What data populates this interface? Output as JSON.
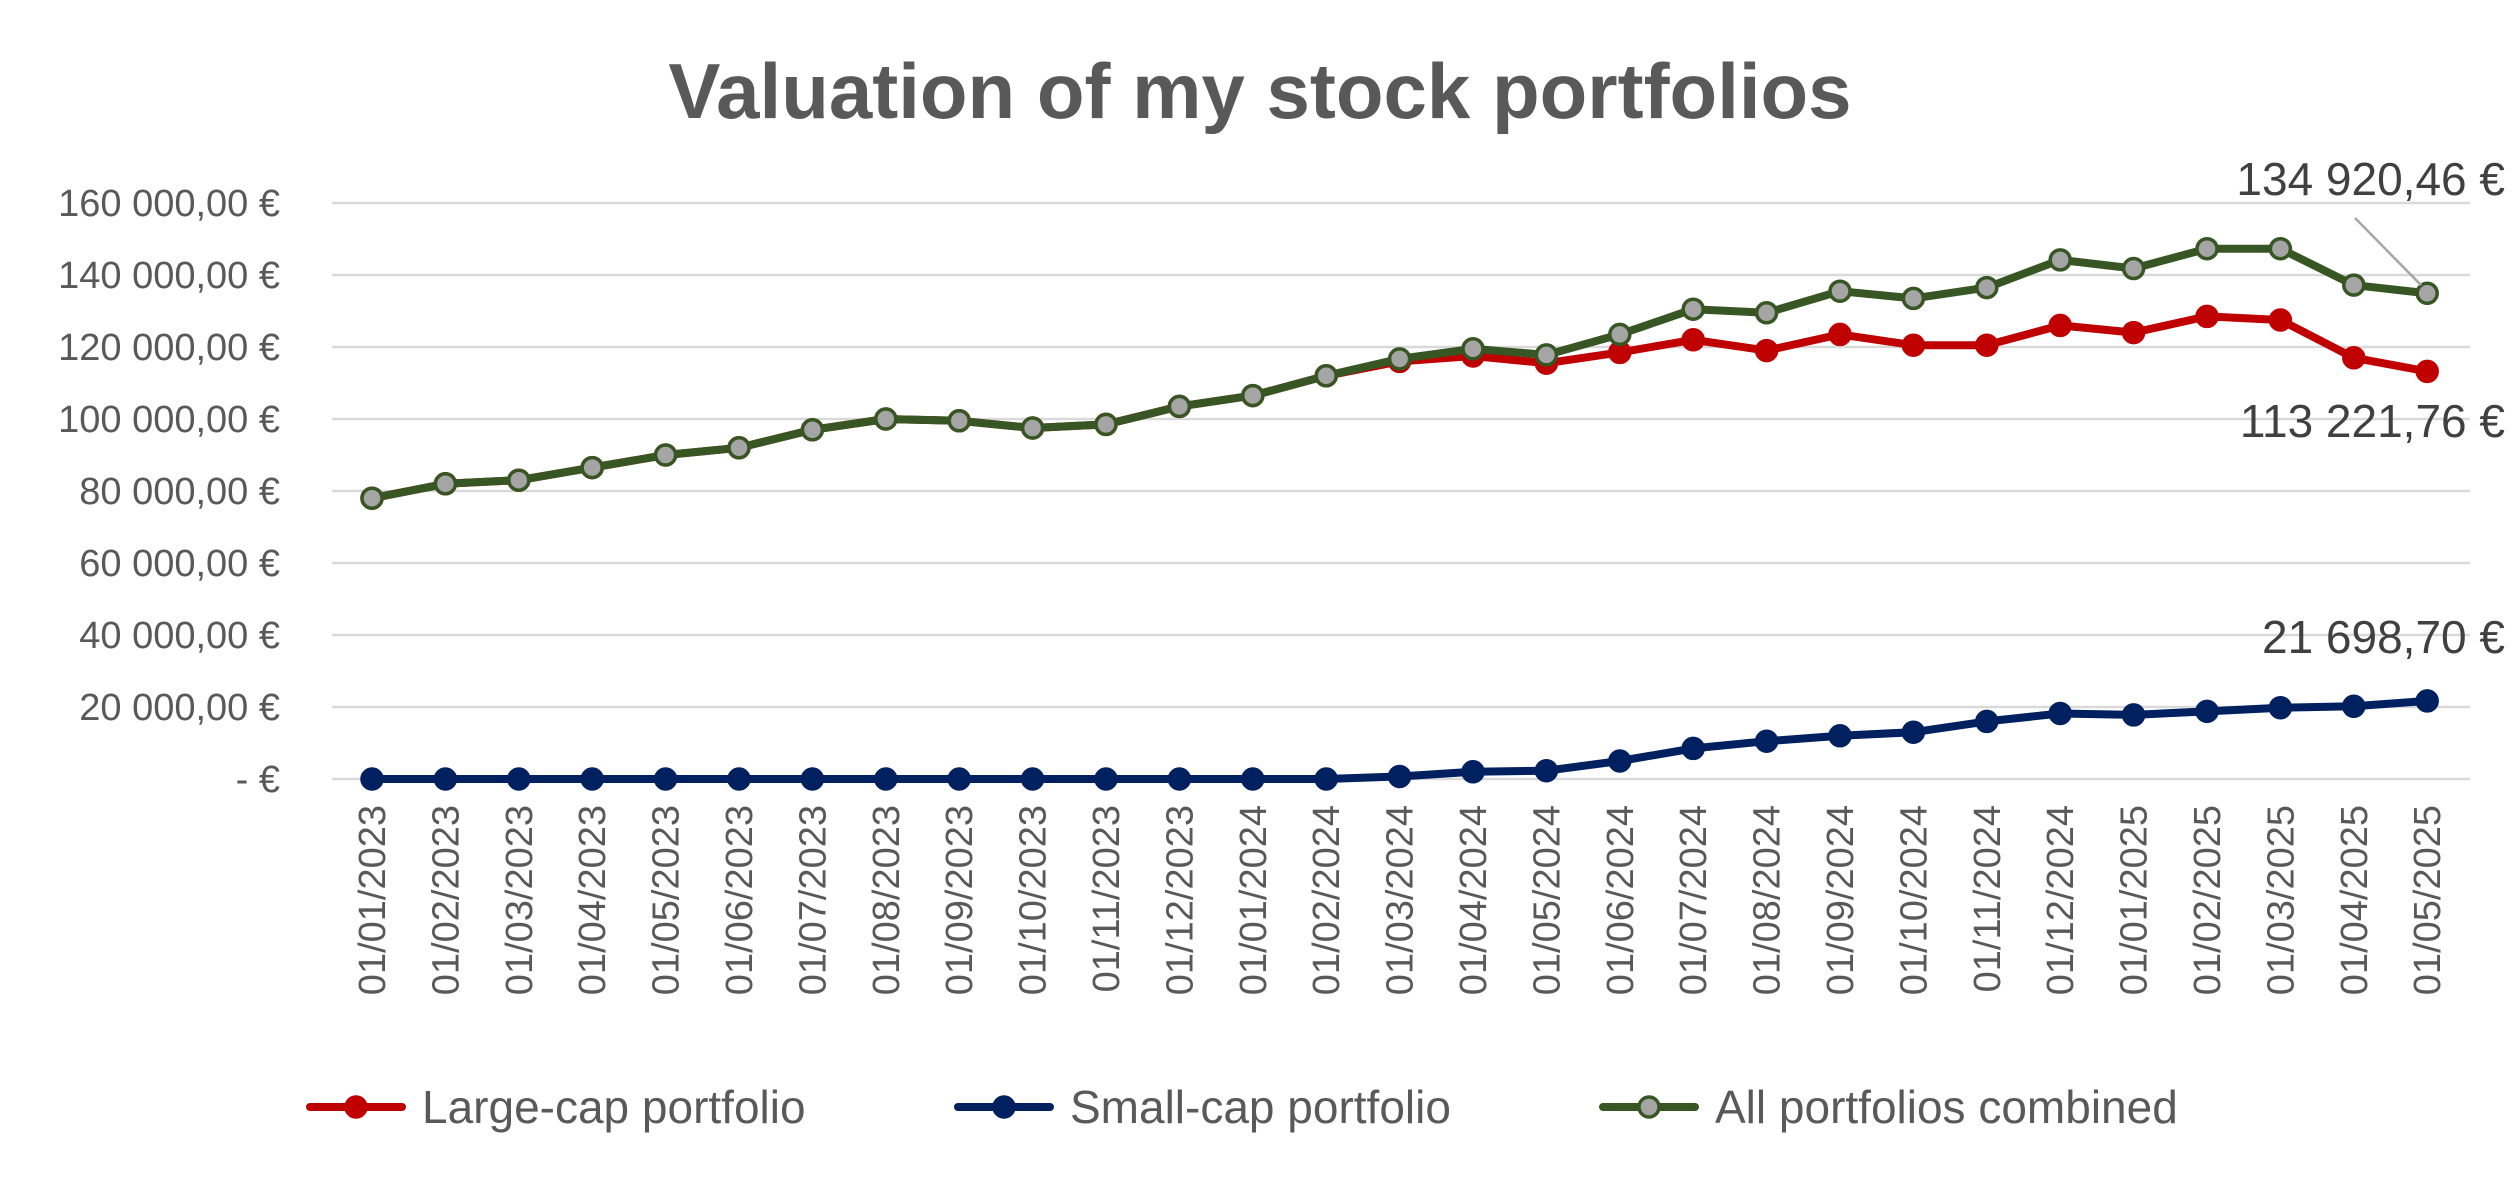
{
  "chart_data": {
    "type": "line",
    "title": "Valuation of my stock portfolios",
    "xlabel": "",
    "ylabel": "",
    "ylim": [
      0,
      160000
    ],
    "y_ticks": [
      {
        "value": 0,
        "label": "-  €"
      },
      {
        "value": 20000,
        "label": "20 000,00 €"
      },
      {
        "value": 40000,
        "label": "40 000,00 €"
      },
      {
        "value": 60000,
        "label": "60 000,00 €"
      },
      {
        "value": 80000,
        "label": "80 000,00 €"
      },
      {
        "value": 100000,
        "label": "100 000,00 €"
      },
      {
        "value": 120000,
        "label": "120 000,00 €"
      },
      {
        "value": 140000,
        "label": "140 000,00 €"
      },
      {
        "value": 160000,
        "label": "160 000,00 €"
      }
    ],
    "grid": true,
    "legend_position": "bottom",
    "categories": [
      "01/01/2023",
      "01/02/2023",
      "01/03/2023",
      "01/04/2023",
      "01/05/2023",
      "01/06/2023",
      "01/07/2023",
      "01/08/2023",
      "01/09/2023",
      "01/10/2023",
      "01/11/2023",
      "01/12/2023",
      "01/01/2024",
      "01/02/2024",
      "01/03/2024",
      "01/04/2024",
      "01/05/2024",
      "01/06/2024",
      "01/07/2024",
      "01/08/2024",
      "01/09/2024",
      "01/10/2024",
      "01/11/2024",
      "01/12/2024",
      "01/01/2025",
      "01/02/2025",
      "01/03/2025",
      "01/04/2025",
      "01/05/2025"
    ],
    "series": [
      {
        "name": "Large-cap portfolio",
        "color": "#C00000",
        "marker_fill": "#C00000",
        "values": [
          78000,
          82000,
          83000,
          86500,
          90000,
          92000,
          97000,
          100000,
          99500,
          97500,
          98500,
          103500,
          106500,
          112000,
          116000,
          117500,
          115500,
          118500,
          122000,
          119000,
          123500,
          120500,
          120500,
          126000,
          124000,
          128500,
          127500,
          117000,
          113221.76
        ]
      },
      {
        "name": "Small-cap portfolio",
        "color": "#002060",
        "marker_fill": "#002060",
        "values": [
          0,
          0,
          0,
          0,
          0,
          0,
          0,
          0,
          0,
          0,
          0,
          0,
          0,
          0,
          700,
          2000,
          2300,
          5000,
          8500,
          10500,
          12000,
          13000,
          16000,
          18200,
          17800,
          18800,
          19800,
          20200,
          21698.7
        ]
      },
      {
        "name": "All portfolios combined",
        "color": "#375623",
        "marker_fill": "#A5A5A5",
        "values": [
          78000,
          82000,
          83000,
          86500,
          90000,
          92000,
          97000,
          100000,
          99500,
          97500,
          98500,
          103500,
          106500,
          112000,
          116700,
          119500,
          117800,
          123500,
          130500,
          129500,
          135500,
          133500,
          136500,
          144200,
          141800,
          147300,
          147300,
          137200,
          134920.46
        ]
      }
    ],
    "annotations": [
      {
        "series": "All portfolios combined",
        "label": "134 920,46 €"
      },
      {
        "series": "Large-cap portfolio",
        "label": "113 221,76 €"
      },
      {
        "series": "Small-cap portfolio",
        "label": "21 698,70 €"
      }
    ]
  }
}
